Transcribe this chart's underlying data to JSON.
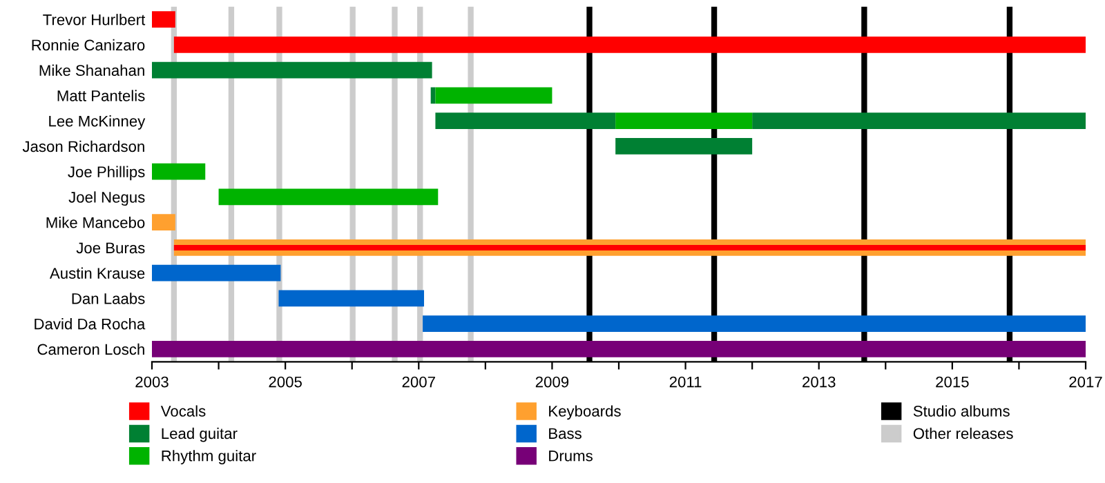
{
  "chart_data": {
    "type": "bar",
    "orientation": "horizontal",
    "categories": [
      "Trevor Hurlbert",
      "Ronnie Canizaro",
      "Mike Shanahan",
      "Matt Pantelis",
      "Lee McKinney",
      "Jason Richardson",
      "Joe Phillips",
      "Joel Negus",
      "Mike Mancebo",
      "Joe Buras",
      "Austin Krause",
      "Dan Laabs",
      "David Da Rocha",
      "Cameron Losch"
    ],
    "series": [
      {
        "name": "Vocals",
        "color": "#ff0000",
        "base": [
          2003,
          2003.33,
          null,
          null,
          null,
          null,
          null,
          null,
          null,
          null,
          null,
          null,
          null,
          null
        ],
        "values": [
          0.35,
          13.67,
          null,
          null,
          null,
          null,
          null,
          null,
          null,
          null,
          null,
          null,
          null,
          null
        ]
      },
      {
        "name": "Lead guitar",
        "color": "#008033",
        "base": [
          null,
          null,
          2003,
          2007.18,
          2007.25,
          2009.95,
          null,
          null,
          null,
          null,
          null,
          null,
          null,
          null
        ],
        "values": [
          null,
          null,
          4.2,
          0.07,
          2.7,
          2.05,
          null,
          null,
          null,
          null,
          null,
          null,
          null,
          null
        ]
      },
      {
        "color": "#008033",
        "base": [
          null,
          null,
          null,
          null,
          2012.0,
          null,
          null,
          null,
          null,
          null,
          null,
          null,
          null,
          null
        ],
        "values": [
          null,
          null,
          null,
          null,
          5.0,
          null,
          null,
          null,
          null,
          null,
          null,
          null,
          null,
          null
        ]
      },
      {
        "name": "Rhythm guitar",
        "color": "#00b300",
        "base": [
          null,
          null,
          null,
          2007.25,
          2009.95,
          null,
          2003,
          2004.0,
          null,
          null,
          null,
          null,
          null,
          null
        ],
        "values": [
          null,
          null,
          null,
          1.75,
          2.05,
          null,
          0.8,
          3.29,
          null,
          null,
          null,
          null,
          null,
          null
        ]
      },
      {
        "name": "Keyboards",
        "color": "#ffa02f",
        "base": [
          null,
          null,
          null,
          null,
          null,
          null,
          null,
          null,
          2003,
          2003.33,
          null,
          null,
          null,
          null
        ],
        "values": [
          null,
          null,
          null,
          null,
          null,
          null,
          null,
          null,
          0.35,
          13.67,
          null,
          null,
          null,
          null
        ]
      },
      {
        "color": "#ff0000",
        "base": [
          null,
          null,
          null,
          null,
          null,
          null,
          null,
          null,
          null,
          2003.33,
          null,
          null,
          null,
          null
        ],
        "values": [
          null,
          null,
          null,
          null,
          null,
          null,
          null,
          null,
          null,
          13.67,
          null,
          null,
          null,
          null
        ]
      },
      {
        "name": "Bass",
        "color": "#0066cc",
        "base": [
          null,
          null,
          null,
          null,
          null,
          null,
          null,
          null,
          null,
          null,
          2003,
          2004.9,
          2007.06,
          null
        ],
        "values": [
          null,
          null,
          null,
          null,
          null,
          null,
          null,
          null,
          null,
          null,
          1.93,
          2.18,
          9.94,
          null
        ]
      },
      {
        "name": "Drums",
        "color": "#770077",
        "base": [
          null,
          null,
          null,
          null,
          null,
          null,
          null,
          null,
          null,
          null,
          null,
          null,
          null,
          2003
        ],
        "values": [
          null,
          null,
          null,
          null,
          null,
          null,
          null,
          null,
          null,
          null,
          null,
          null,
          null,
          14
        ]
      }
    ],
    "ref_lines": [
      {
        "axis": "x",
        "value": 2009.56,
        "label": "Studio albums",
        "color": "#000000"
      },
      {
        "axis": "x",
        "value": 2011.43,
        "color": "#000000"
      },
      {
        "axis": "x",
        "value": 2013.68,
        "color": "#000000"
      },
      {
        "axis": "x",
        "value": 2015.86,
        "color": "#000000"
      },
      {
        "axis": "x",
        "value": 2003.33,
        "label": "Other releases",
        "color": "#cccccc"
      },
      {
        "axis": "x",
        "value": 2004.19,
        "color": "#cccccc"
      },
      {
        "axis": "x",
        "value": 2004.91,
        "color": "#cccccc"
      },
      {
        "axis": "x",
        "value": 2006.01,
        "color": "#cccccc"
      },
      {
        "axis": "x",
        "value": 2006.64,
        "color": "#cccccc"
      },
      {
        "axis": "x",
        "value": 2007.02,
        "color": "#cccccc"
      },
      {
        "axis": "x",
        "value": 2007.78,
        "color": "#cccccc"
      }
    ],
    "xlim": [
      2003,
      2017
    ],
    "xticks": [
      2003,
      {
        "value": 2004,
        "label": null
      },
      2005,
      {
        "value": 2006,
        "label": null
      },
      2007,
      {
        "value": 2008,
        "label": null
      },
      2009,
      {
        "value": 2010,
        "label": null
      },
      2011,
      {
        "value": 2012,
        "label": null
      },
      2013,
      {
        "value": 2014,
        "label": null
      },
      2015,
      {
        "value": 2016,
        "label": null
      },
      2017
    ],
    "grid": false,
    "legend": "bottom"
  }
}
